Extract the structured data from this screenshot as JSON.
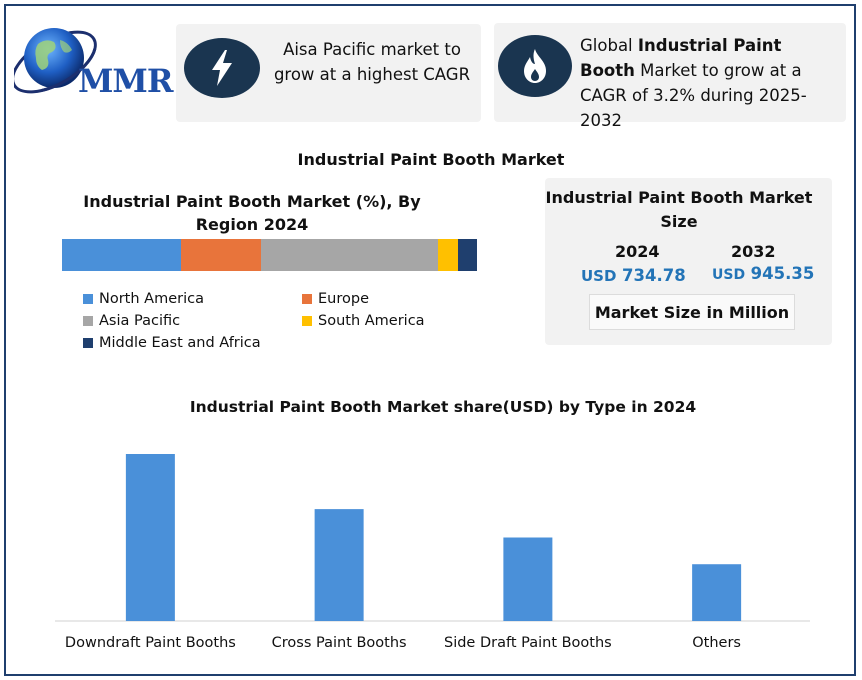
{
  "logo": {
    "text": "MMR"
  },
  "cards": {
    "card1": {
      "icon": "lightning-icon",
      "text": "Aisa Pacific market to grow at a highest CAGR"
    },
    "card2": {
      "icon": "flame-icon",
      "text_pre": "Global ",
      "text_bold": "Industrial Paint Booth",
      "text_post": " Market to grow at a CAGR of 3.2% during 2025-2032"
    }
  },
  "main_title": "Industrial Paint Booth Market",
  "market_size": {
    "title": "Industrial Paint Booth Market Size",
    "year1": "2024",
    "year2": "2032",
    "currency": "USD",
    "value1": "734.78",
    "value2": "945.35",
    "unit_label": "Market Size in Million",
    "value_color": "#2374b7"
  },
  "chart_data": [
    {
      "type": "bar",
      "orientation": "horizontal-stacked",
      "title": "Industrial Paint Booth Market (%), By Region 2024",
      "series": [
        {
          "name": "North America",
          "value": 28.5,
          "color": "#4a90d9"
        },
        {
          "name": "Europe",
          "value": 19.2,
          "color": "#e8743b"
        },
        {
          "name": "Asia Pacific",
          "value": 42.4,
          "color": "#a6a6a6"
        },
        {
          "name": "South America",
          "value": 4.8,
          "color": "#ffc000"
        },
        {
          "name": "Middle East and Africa",
          "value": 4.6,
          "color": "#1f3f6e"
        }
      ],
      "xlim": [
        0,
        100
      ],
      "legend_position": "bottom"
    },
    {
      "type": "bar",
      "title": "Industrial Paint Booth Market share(USD)  by Type in 2024",
      "categories": [
        "Downdraft Paint Booths",
        "Cross Paint Booths",
        "Side Draft Paint Booths",
        "Others"
      ],
      "values": [
        100,
        67,
        50,
        34
      ],
      "color": "#4a90d9",
      "grid": false,
      "legend_position": "none"
    }
  ]
}
